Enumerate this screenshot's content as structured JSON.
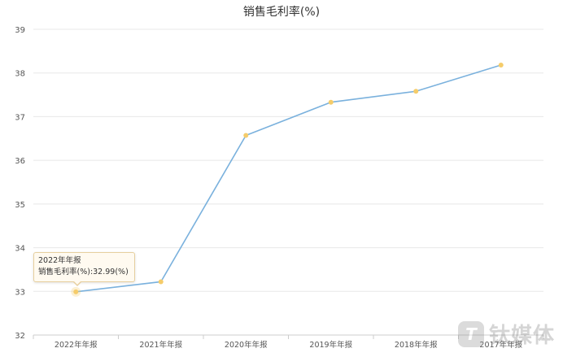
{
  "chart_data": {
    "type": "line",
    "title": "销售毛利率(%)",
    "xlabel": "",
    "ylabel": "",
    "categories": [
      "2022年年报",
      "2021年年报",
      "2020年年报",
      "2019年年报",
      "2018年年报",
      "2017年年报"
    ],
    "series": [
      {
        "values": [
          32.99,
          33.22,
          36.57,
          37.33,
          37.58,
          38.18
        ]
      }
    ],
    "ylim": [
      32,
      39
    ],
    "yticks": [
      32,
      33,
      34,
      35,
      36,
      37,
      38,
      39
    ],
    "grid": true,
    "colors": {
      "line": "#7ab1dd",
      "point": "#f5cc6a",
      "grid": "#e8e8e8",
      "axis": "#cccccc",
      "text": "#555555"
    }
  },
  "tooltip": {
    "category": "2022年年报",
    "label": "销售毛利率(%):32.99(%)"
  },
  "watermark": {
    "logo_letter": "T",
    "text": "钛媒体"
  }
}
